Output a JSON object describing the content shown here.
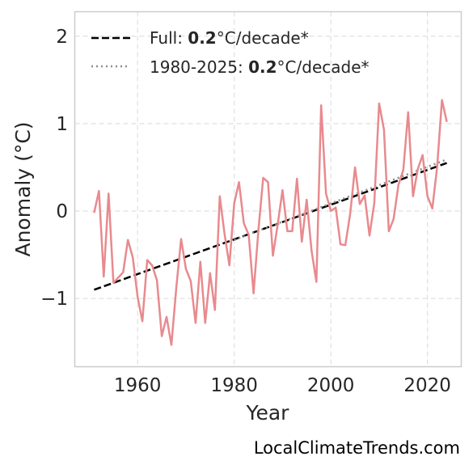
{
  "chart_data": {
    "type": "line",
    "xlabel": "Year",
    "ylabel": "Anomaly (°C)",
    "xlim": [
      1947,
      2027
    ],
    "ylim": [
      -1.78,
      2.28
    ],
    "x_ticks": [
      1960,
      1980,
      2000,
      2020
    ],
    "y_ticks": [
      -1,
      0,
      1,
      2
    ],
    "y_tick_labels": [
      "−1",
      "0",
      "1",
      "2"
    ],
    "grid": true,
    "legend_position": "top-left",
    "series": [
      {
        "x": [
          1951,
          1952,
          1953,
          1954,
          1955,
          1956,
          1957,
          1958,
          1959,
          1960,
          1961,
          1962,
          1963,
          1964,
          1965,
          1966,
          1967,
          1968,
          1969,
          1970,
          1971,
          1972,
          1973,
          1974,
          1975,
          1976,
          1977,
          1978,
          1979,
          1980,
          1981,
          1982,
          1983,
          1984,
          1985,
          1986,
          1987,
          1988,
          1989,
          1990,
          1991,
          1992,
          1993,
          1994,
          1995,
          1996,
          1997,
          1998,
          1999,
          2000,
          2001,
          2002,
          2003,
          2004,
          2005,
          2006,
          2007,
          2008,
          2009,
          2010,
          2011,
          2012,
          2013,
          2014,
          2015,
          2016,
          2017,
          2018,
          2019,
          2020,
          2021,
          2022,
          2023,
          2024
        ],
        "values": [
          -0.02,
          0.23,
          -0.75,
          0.2,
          -0.82,
          -0.76,
          -0.7,
          -0.33,
          -0.53,
          -0.98,
          -1.26,
          -0.56,
          -0.62,
          -0.79,
          -1.43,
          -1.21,
          -1.53,
          -0.88,
          -0.32,
          -0.66,
          -0.8,
          -1.28,
          -0.58,
          -1.28,
          -0.71,
          -1.13,
          0.17,
          -0.26,
          -0.62,
          0.09,
          0.33,
          -0.14,
          -0.27,
          -0.94,
          -0.23,
          0.38,
          0.33,
          -0.51,
          -0.15,
          0.24,
          -0.23,
          -0.23,
          0.37,
          -0.35,
          0.13,
          -0.45,
          -0.81,
          1.21,
          0.2,
          0.0,
          0.04,
          -0.38,
          -0.39,
          -0.03,
          0.5,
          0.08,
          0.18,
          -0.28,
          0.09,
          1.23,
          0.93,
          -0.23,
          -0.09,
          0.3,
          0.47,
          1.13,
          0.17,
          0.48,
          0.64,
          0.17,
          0.03,
          0.5,
          1.27,
          1.02
        ],
        "color": "#e88a8e"
      }
    ],
    "trend_lines": [
      {
        "label_prefix": "Full: ",
        "rate": "0.2",
        "label_suffix": "°C/decade*",
        "x": [
          1951,
          2024
        ],
        "y": [
          -0.9,
          0.55
        ],
        "color": "#000000",
        "style": "dashed"
      },
      {
        "label_prefix": "1980-2025: ",
        "rate": "0.2",
        "label_suffix": "°C/decade*",
        "x": [
          1980,
          2024
        ],
        "y": [
          -0.33,
          0.59
        ],
        "color": "#8c8c8c",
        "style": "dotted"
      }
    ]
  },
  "watermark": "LocalClimateTrends.com"
}
